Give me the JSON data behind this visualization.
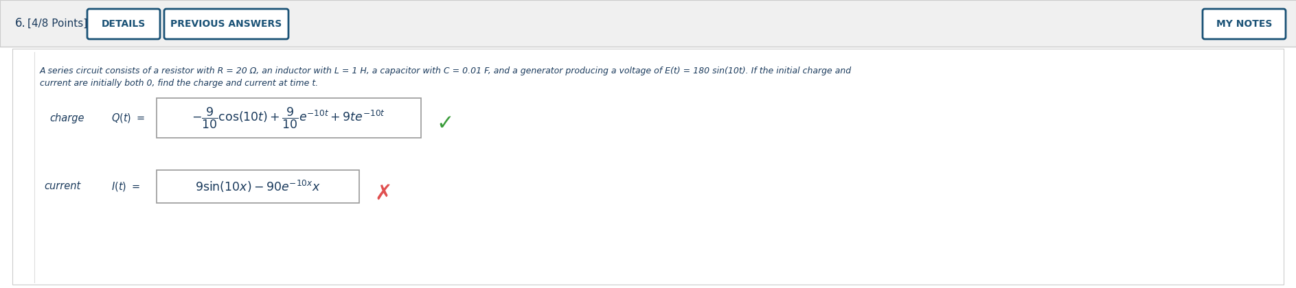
{
  "bg_outer": "#f0f0f0",
  "bg_header": "#f0f0f0",
  "white": "#ffffff",
  "text_color": "#1a3a5c",
  "btn_text_color": "#1a5276",
  "btn_border_color": "#1a5276",
  "header_border_color": "#cccccc",
  "content_border_color": "#cccccc",
  "problem_number": "6.  [4/8 Points]",
  "btn1": "DETAILS",
  "btn2": "PREVIOUS ANSWERS",
  "btn3": "MY NOTES",
  "problem_text_line1": "A series circuit consists of a resistor with R = 20 Ω, an inductor with L = 1 H, a capacitor with C = 0.01 F, and a generator producing a voltage of E(t) = 180 sin(10t). If the initial charge and",
  "problem_text_line2": "current are initially both 0, find the charge and current at time t.",
  "charge_label": "charge",
  "current_label": "current",
  "check_color": "#3a9c3a",
  "cross_color": "#e05050",
  "eq_border": "#999999",
  "math_color": "#1a3a5c"
}
